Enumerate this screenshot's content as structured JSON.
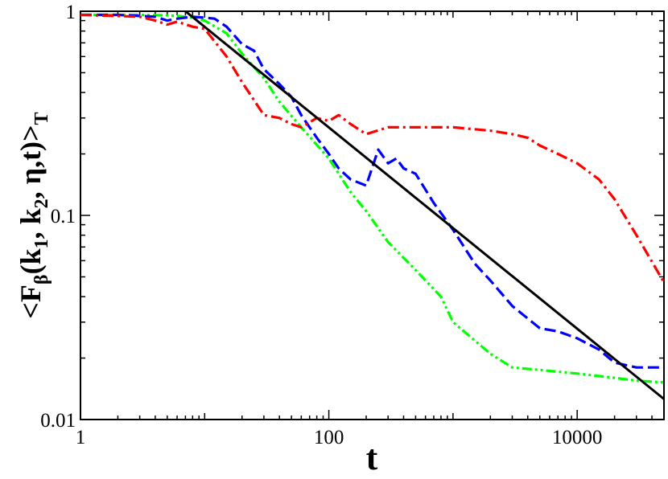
{
  "chart_data": {
    "type": "line",
    "x_scale": "log",
    "y_scale": "log",
    "xlim": [
      1,
      50000
    ],
    "ylim": [
      0.01,
      1
    ],
    "grid": false,
    "legend": "none",
    "xlabel": "t",
    "ylabel": {
      "prefix": "<F",
      "sub_beta": "β",
      "part1": "(k",
      "sub_1": "1",
      "part2": ", k",
      "sub_2": "2",
      "part3": ", η,t)>",
      "sub_T": "T"
    },
    "x_ticks": [
      {
        "value": 1,
        "label": "1"
      },
      {
        "value": 100,
        "label": "100"
      },
      {
        "value": 10000,
        "label": "10000"
      }
    ],
    "y_ticks": [
      {
        "value": 1,
        "label": "1"
      },
      {
        "value": 0.1,
        "label": "0.1"
      },
      {
        "value": 0.01,
        "label": "0.01"
      }
    ],
    "series": [
      {
        "color": "#00ff00",
        "dash": "dash-dot-dot",
        "x": [
          1,
          3,
          5,
          6,
          8,
          10,
          15,
          20,
          30,
          40,
          60,
          100,
          150,
          200,
          300,
          500,
          800,
          1000,
          2000,
          3000,
          5000,
          10000,
          20000,
          30000,
          50000
        ],
        "y": [
          0.96,
          0.96,
          0.955,
          0.95,
          0.93,
          0.9,
          0.78,
          0.62,
          0.47,
          0.36,
          0.27,
          0.19,
          0.13,
          0.105,
          0.074,
          0.054,
          0.04,
          0.03,
          0.021,
          0.018,
          0.0175,
          0.0168,
          0.016,
          0.0155,
          0.0152
        ]
      },
      {
        "color": "#0000ff",
        "dash": "dashed",
        "x": [
          1,
          2,
          4,
          5,
          6,
          8,
          10,
          12,
          15,
          20,
          25,
          30,
          40,
          50,
          60,
          80,
          100,
          120,
          150,
          200,
          250,
          300,
          350,
          400,
          500,
          700,
          1000,
          1500,
          2000,
          3000,
          5000,
          7000,
          10000,
          15000,
          20000,
          30000,
          50000
        ],
        "y": [
          0.96,
          0.96,
          0.94,
          0.9,
          0.92,
          0.94,
          0.93,
          0.92,
          0.84,
          0.69,
          0.64,
          0.52,
          0.44,
          0.38,
          0.31,
          0.24,
          0.2,
          0.17,
          0.15,
          0.14,
          0.21,
          0.18,
          0.19,
          0.17,
          0.16,
          0.115,
          0.085,
          0.058,
          0.048,
          0.036,
          0.028,
          0.027,
          0.025,
          0.022,
          0.019,
          0.018,
          0.018
        ]
      },
      {
        "color": "#ff0000",
        "dash": "dash-dot",
        "x": [
          1,
          3,
          4,
          5,
          6,
          8,
          10,
          15,
          20,
          30,
          40,
          50,
          60,
          80,
          100,
          120,
          150,
          200,
          300,
          400,
          600,
          1000,
          2000,
          3000,
          4000,
          5000,
          7000,
          10000,
          15000,
          20000,
          30000,
          50000
        ],
        "y": [
          0.96,
          0.94,
          0.9,
          0.86,
          0.89,
          0.84,
          0.82,
          0.6,
          0.45,
          0.31,
          0.3,
          0.28,
          0.27,
          0.3,
          0.29,
          0.31,
          0.28,
          0.25,
          0.27,
          0.27,
          0.27,
          0.27,
          0.26,
          0.25,
          0.24,
          0.22,
          0.2,
          0.18,
          0.15,
          0.12,
          0.08,
          0.047
        ]
      },
      {
        "color": "#000000",
        "dash": "solid",
        "x": [
          7,
          50000
        ],
        "y": [
          1.0,
          0.0126
        ]
      }
    ]
  }
}
